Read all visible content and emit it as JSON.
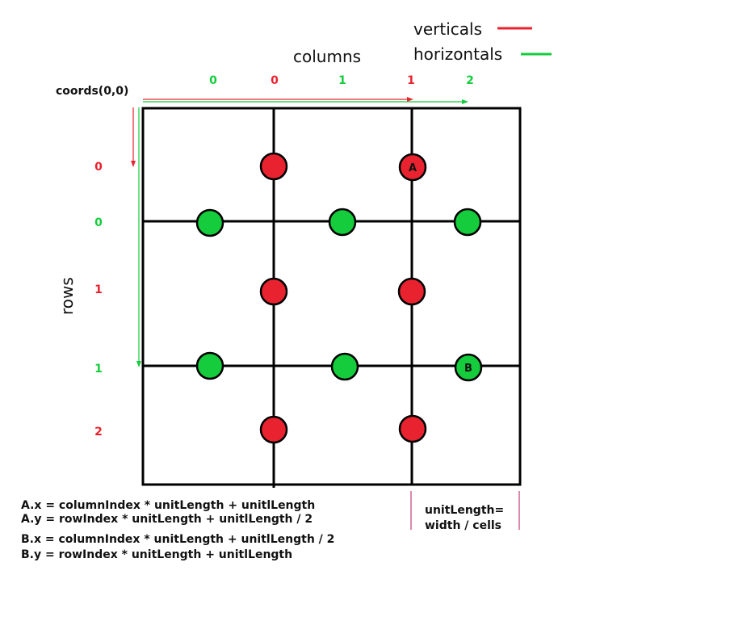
{
  "colors": {
    "vertical": "#e8232f",
    "horizontal": "#15cc3c",
    "line": "#000000",
    "unitline": "#b5145a"
  },
  "legend": {
    "verticals_label": "verticals",
    "horizontals_label": "horizontals"
  },
  "axis": {
    "columns_label": "columns",
    "rows_label": "rows",
    "origin_label": "coords(0,0)"
  },
  "column_indices": [
    {
      "text": "0",
      "kind": "horizontal"
    },
    {
      "text": "0",
      "kind": "vertical"
    },
    {
      "text": "1",
      "kind": "horizontal"
    },
    {
      "text": "1",
      "kind": "vertical"
    },
    {
      "text": "2",
      "kind": "horizontal"
    }
  ],
  "row_indices": [
    {
      "text": "0",
      "kind": "vertical"
    },
    {
      "text": "0",
      "kind": "horizontal"
    },
    {
      "text": "1",
      "kind": "vertical"
    },
    {
      "text": "1",
      "kind": "horizontal"
    },
    {
      "text": "2",
      "kind": "vertical"
    }
  ],
  "markers": {
    "A": "A",
    "B": "B"
  },
  "formulas": {
    "a_x": "A.x = columnIndex * unitLength + unitlLength",
    "a_y": "A.y = rowIndex * unitLength + unitlLength / 2",
    "b_x": "B.x = columnIndex * unitLength + unitlLength / 2",
    "b_y": "B.y = rowIndex * unitLength + unitlLength"
  },
  "unit_note": {
    "line1": "unitLength=",
    "line2": "width / cells"
  }
}
